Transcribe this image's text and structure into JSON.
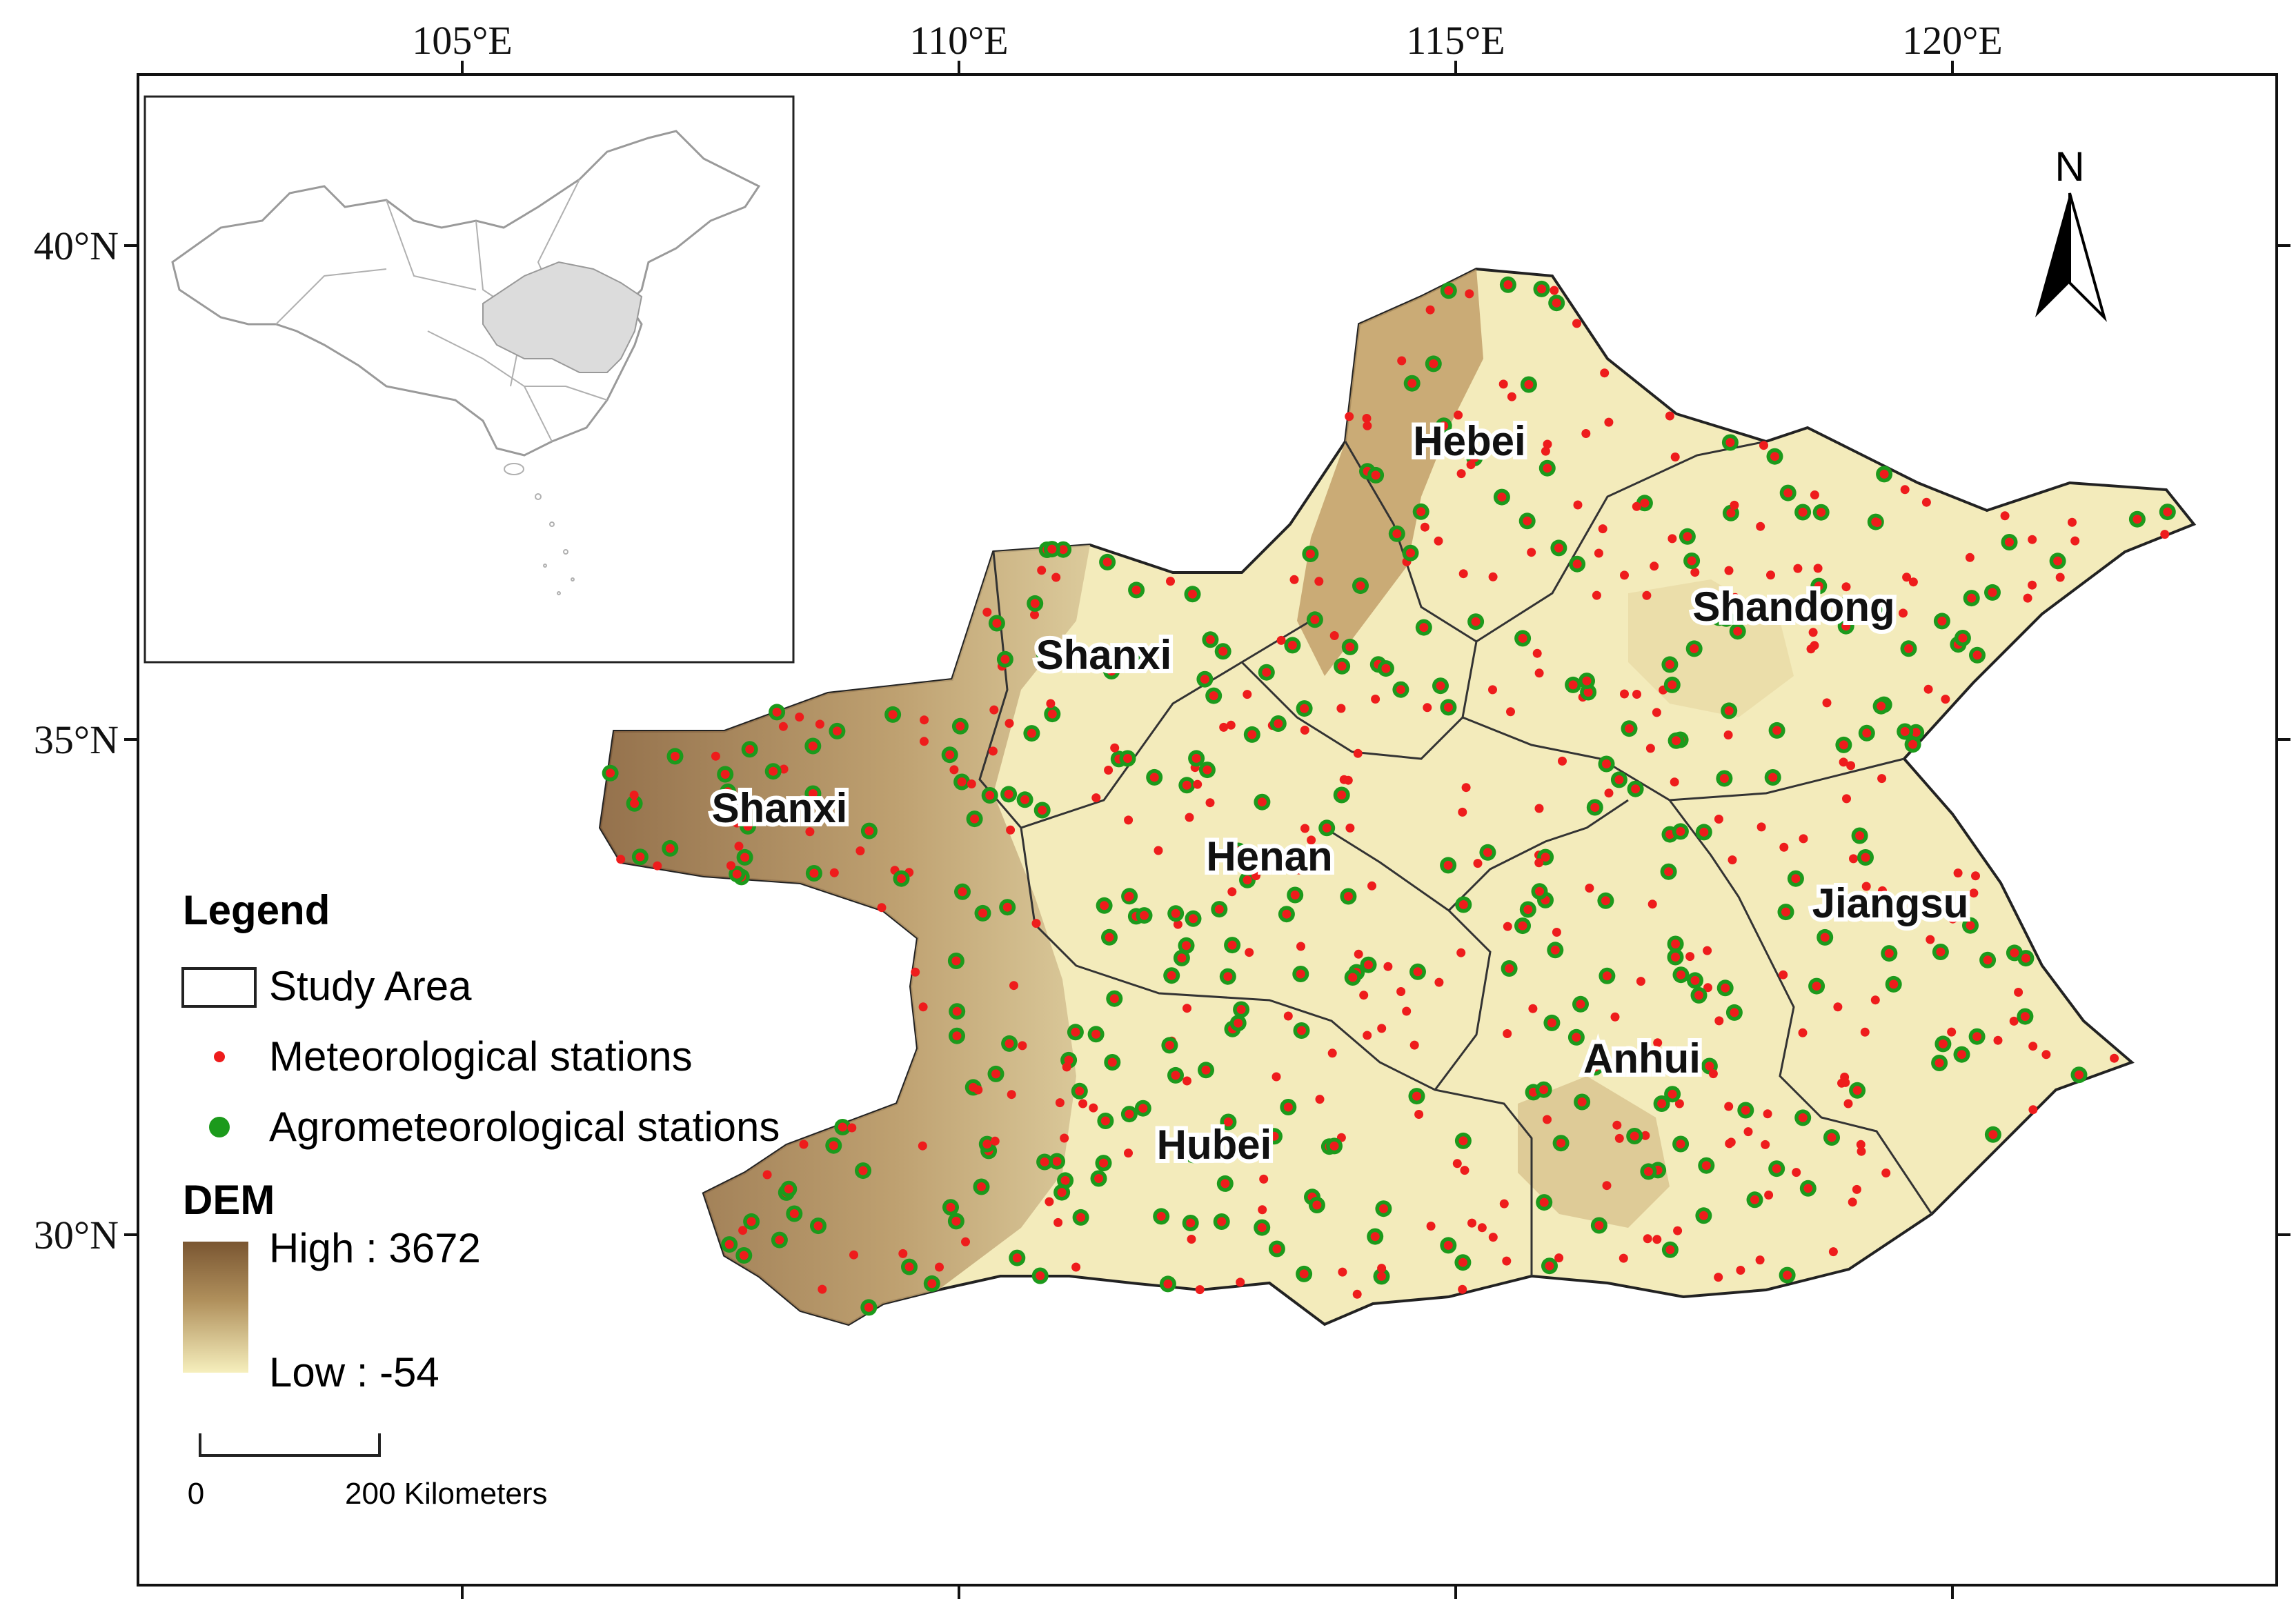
{
  "longitude_ticks": [
    "105°E",
    "110°E",
    "115°E",
    "120°E"
  ],
  "latitude_ticks": [
    "40°N",
    "35°N",
    "30°N"
  ],
  "north_arrow": {
    "label": "N",
    "icon": "north-arrow-icon"
  },
  "provinces": [
    "Hebei",
    "Shanxi",
    "Shandong",
    "Shanxi",
    "Henan",
    "Jiangsu",
    "Anhui",
    "Hubei"
  ],
  "legend": {
    "title": "Legend",
    "study_area": "Study Area",
    "meteorological": "Meteorological stations",
    "agrometeorological": "Agrometeorological stations",
    "dem_title": "DEM",
    "dem_high": "High : 3672",
    "dem_low": "Low : -54"
  },
  "scale_bar": {
    "zero": "0",
    "distance": "200 Kilometers"
  },
  "colors": {
    "meteorological": "#ee1c1c",
    "agrometeorological": "#1c9a1c",
    "dem_high": "#7a5632",
    "dem_low": "#f6efbd",
    "boundary": "#222222"
  }
}
